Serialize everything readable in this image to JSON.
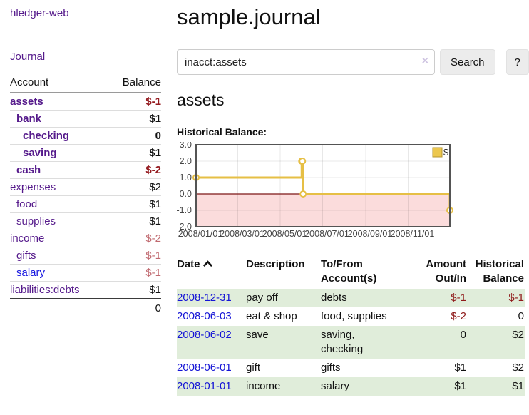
{
  "sidebar": {
    "brand": "hledger-web",
    "journal_link": "Journal",
    "accounts_table": {
      "headers": {
        "account": "Account",
        "balance": "Balance"
      },
      "rows": [
        {
          "name": "assets",
          "balance": "$-1",
          "indent": 0,
          "bold": true,
          "neg": "strong"
        },
        {
          "name": "bank",
          "balance": "$1",
          "indent": 1,
          "bold": true,
          "neg": "none"
        },
        {
          "name": "checking",
          "balance": "0",
          "indent": 2,
          "bold": true,
          "neg": "none"
        },
        {
          "name": "saving",
          "balance": "$1",
          "indent": 2,
          "bold": true,
          "neg": "none"
        },
        {
          "name": "cash",
          "balance": "$-2",
          "indent": 1,
          "bold": true,
          "neg": "strong"
        },
        {
          "name": "expenses",
          "balance": "$2",
          "indent": 0,
          "bold": false,
          "neg": "none"
        },
        {
          "name": "food",
          "balance": "$1",
          "indent": 1,
          "bold": false,
          "neg": "none"
        },
        {
          "name": "supplies",
          "balance": "$1",
          "indent": 1,
          "bold": false,
          "neg": "none"
        },
        {
          "name": "income",
          "balance": "$-2",
          "indent": 0,
          "bold": false,
          "neg": "soft"
        },
        {
          "name": "gifts",
          "balance": "$-1",
          "indent": 1,
          "bold": false,
          "neg": "soft"
        },
        {
          "name": "salary",
          "balance": "$-1",
          "indent": 1,
          "bold": false,
          "neg": "soft",
          "link_blue": true
        },
        {
          "name": "liabilities:debts",
          "balance": "$1",
          "indent": 0,
          "bold": false,
          "neg": "none"
        }
      ],
      "total": "0"
    }
  },
  "main": {
    "title": "sample.journal",
    "search": {
      "value": "inacct:assets",
      "clear_icon": "×",
      "search_label": "Search",
      "help_label": "?"
    },
    "account_heading": "assets",
    "chart_heading": "Historical Balance:"
  },
  "chart_data": {
    "type": "line",
    "title": "Historical Balance:",
    "legend": [
      {
        "label": "$",
        "color": "#ecc74e"
      }
    ],
    "legend_position": "top-right",
    "grid": true,
    "x_domain": [
      "2008-01-01",
      "2008-12-31"
    ],
    "x_ticks": [
      "2008/01/01",
      "2008/03/01",
      "2008/05/01",
      "2008/07/01",
      "2008/09/01",
      "2008/11/01"
    ],
    "y_ticks": [
      3,
      2,
      1,
      0,
      -1,
      -2
    ],
    "ylim": [
      -2,
      3
    ],
    "series": [
      {
        "name": "$",
        "style": "step",
        "points": [
          [
            "2008-01-01",
            1
          ],
          [
            "2008-06-01",
            2
          ],
          [
            "2008-06-02",
            2
          ],
          [
            "2008-06-03",
            0
          ],
          [
            "2008-12-31",
            -1
          ]
        ]
      }
    ],
    "colors": {
      "line": "#e6bf45",
      "marker_fill": "#ffffff",
      "negative_region": "#fbdcdc",
      "zero_line": "#7c1616",
      "grid": "rgba(0,0,0,0.09)",
      "border": "#545454"
    }
  },
  "register": {
    "headers": {
      "date": "Date",
      "description": "Description",
      "accounts": "To/From Account(s)",
      "amount": "Amount Out/In",
      "balance": "Historical Balance"
    },
    "sort": "date-ascending",
    "rows": [
      {
        "date": "2008-12-31",
        "description": "pay off",
        "accounts": "debts",
        "amount": "$-1",
        "balance": "$-1",
        "amount_neg": true,
        "balance_neg": true,
        "shade": true
      },
      {
        "date": "2008-06-03",
        "description": "eat & shop",
        "accounts": "food, supplies",
        "amount": "$-2",
        "balance": "0",
        "amount_neg": true,
        "balance_neg": false,
        "shade": false
      },
      {
        "date": "2008-06-02",
        "description": "save",
        "accounts": "saving, checking",
        "amount": "0",
        "balance": "$2",
        "amount_neg": false,
        "balance_neg": false,
        "shade": true
      },
      {
        "date": "2008-06-01",
        "description": "gift",
        "accounts": "gifts",
        "amount": "$1",
        "balance": "$2",
        "amount_neg": false,
        "balance_neg": false,
        "shade": false
      },
      {
        "date": "2008-01-01",
        "description": "income",
        "accounts": "salary",
        "amount": "$1",
        "balance": "$1",
        "amount_neg": false,
        "balance_neg": false,
        "shade": true
      }
    ]
  }
}
